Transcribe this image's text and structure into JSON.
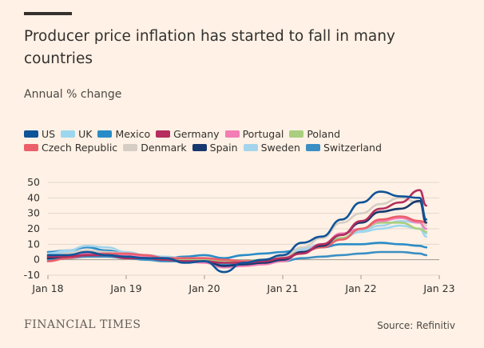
{
  "header": {
    "title": "Producer price inflation has started to fall in many countries",
    "subtitle": "Annual % change"
  },
  "footer": {
    "publisher": "FINANCIAL TIMES",
    "source": "Source: Refinitiv"
  },
  "chart_data": {
    "type": "line",
    "title": "Producer price inflation has started to fall in many countries",
    "subtitle": "Annual % change",
    "xlabel": "",
    "ylabel": "",
    "x_ticks": [
      "Jan 18",
      "Jan 19",
      "Jan 20",
      "Jan 21",
      "Jan 22",
      "Jan 23"
    ],
    "y_ticks": [
      50,
      40,
      30,
      20,
      10,
      0,
      -10
    ],
    "xlim": [
      "2018-01",
      "2023-01"
    ],
    "ylim": [
      -10,
      50
    ],
    "grid": true,
    "legend_position": "top-left",
    "x_dates": [
      "2018-01",
      "2018-04",
      "2018-07",
      "2018-10",
      "2019-01",
      "2019-04",
      "2019-07",
      "2019-10",
      "2020-01",
      "2020-04",
      "2020-07",
      "2020-10",
      "2021-01",
      "2021-04",
      "2021-07",
      "2021-10",
      "2022-01",
      "2022-04",
      "2022-07",
      "2022-10",
      "2022-11"
    ],
    "series": [
      {
        "name": "US",
        "color": "#0F5499",
        "values": [
          3,
          3,
          5,
          3,
          2,
          1,
          1,
          -2,
          -1,
          -8,
          -2,
          0,
          3,
          11,
          15,
          26,
          37,
          44,
          41,
          40,
          26
        ]
      },
      {
        "name": "UK",
        "color": "#9DD7EF",
        "values": [
          3,
          5,
          6,
          5,
          4,
          3,
          1,
          0,
          0,
          -1,
          -1,
          0,
          2,
          6,
          9,
          14,
          18,
          20,
          22,
          20,
          15
        ]
      },
      {
        "name": "Mexico",
        "color": "#2A8CC7",
        "values": [
          5,
          6,
          8,
          6,
          4,
          2,
          1,
          2,
          3,
          1,
          3,
          4,
          5,
          7,
          8,
          10,
          10,
          11,
          10,
          9,
          8
        ]
      },
      {
        "name": "Germany",
        "color": "#B52E5E",
        "values": [
          2,
          2,
          3,
          3,
          1,
          1,
          0,
          -1,
          -1,
          -2,
          -2,
          -1,
          1,
          4,
          10,
          16,
          25,
          33,
          37,
          45,
          35
        ]
      },
      {
        "name": "Portugal",
        "color": "#F27EB5",
        "values": [
          2,
          3,
          4,
          4,
          3,
          2,
          0,
          -1,
          -2,
          -5,
          -4,
          -3,
          -1,
          5,
          10,
          17,
          20,
          25,
          27,
          24,
          20
        ]
      },
      {
        "name": "Poland",
        "color": "#A9CF7E",
        "values": [
          1,
          2,
          3,
          3,
          3,
          2,
          0,
          0,
          0,
          -1,
          -1,
          0,
          2,
          5,
          9,
          14,
          20,
          24,
          24,
          20,
          18
        ]
      },
      {
        "name": "Czech Republic",
        "color": "#EB5F6A",
        "values": [
          -1,
          1,
          3,
          4,
          4,
          3,
          1,
          1,
          1,
          0,
          -1,
          -1,
          1,
          5,
          8,
          13,
          20,
          26,
          28,
          25,
          24
        ]
      },
      {
        "name": "Denmark",
        "color": "#D6CEC4",
        "values": [
          2,
          4,
          6,
          5,
          4,
          2,
          0,
          -1,
          -1,
          -5,
          -4,
          -2,
          2,
          8,
          14,
          24,
          30,
          36,
          40,
          37,
          22
        ]
      },
      {
        "name": "Spain",
        "color": "#17386E",
        "values": [
          1,
          2,
          3,
          3,
          2,
          1,
          0,
          -1,
          -1,
          -4,
          -3,
          -2,
          0,
          5,
          9,
          16,
          24,
          31,
          33,
          38,
          24
        ]
      },
      {
        "name": "Sweden",
        "color": "#A4D4EB",
        "values": [
          4,
          6,
          9,
          8,
          5,
          3,
          2,
          1,
          1,
          -2,
          -2,
          -1,
          2,
          7,
          10,
          14,
          19,
          22,
          25,
          24,
          17
        ]
      },
      {
        "name": "Switzerland",
        "color": "#3A8FC4",
        "values": [
          0,
          1,
          2,
          2,
          1,
          0,
          -1,
          -1,
          -1,
          -3,
          -3,
          -2,
          -1,
          1,
          2,
          3,
          4,
          5,
          5,
          4,
          3
        ]
      }
    ]
  }
}
